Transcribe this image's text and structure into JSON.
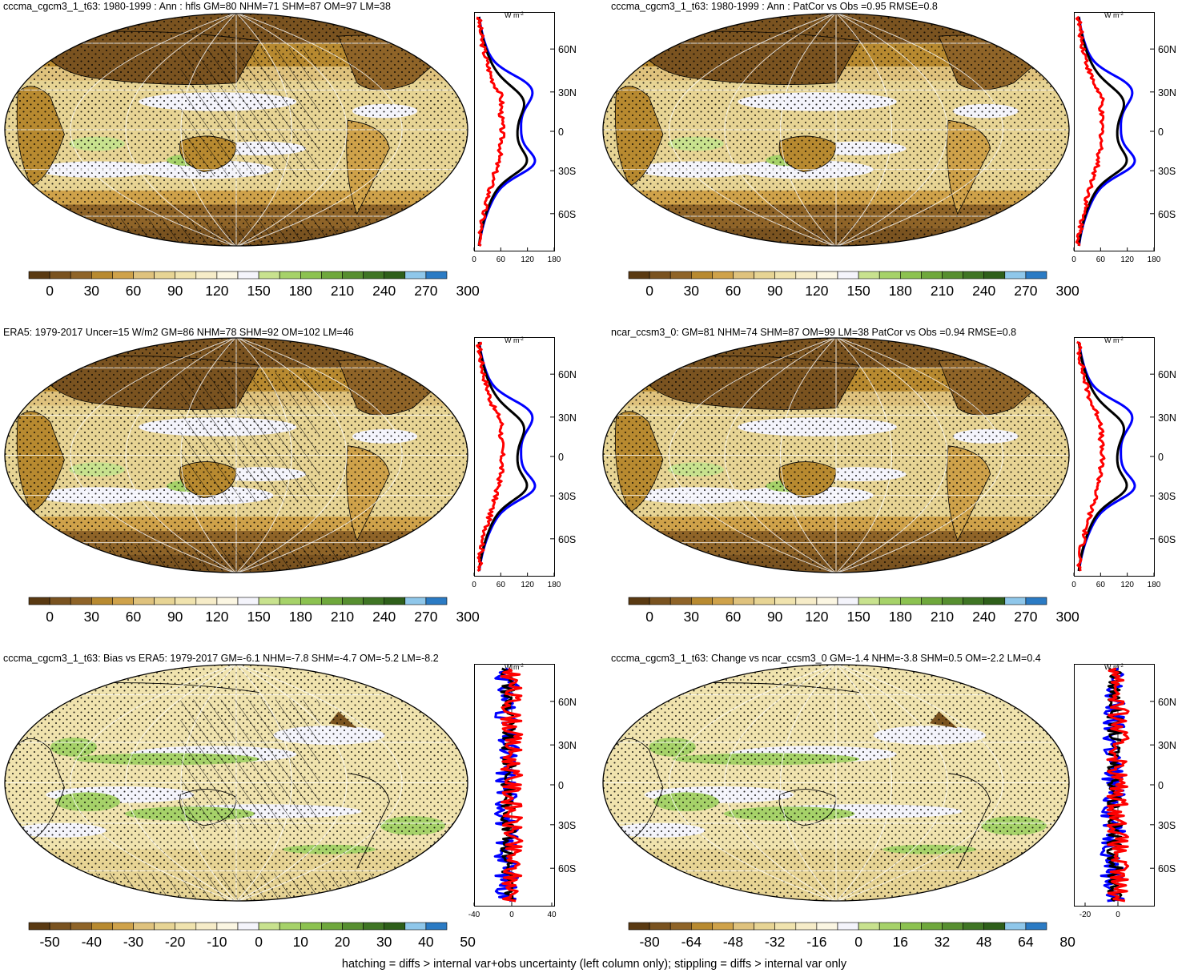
{
  "panels": [
    {
      "id": "p1",
      "title": "cccma_cgcm3_1_t63: 1980-1999 : Ann : hfls GM=80 NHM=71 SHM=87 OM=97 LM=38",
      "palette": "flux",
      "hatch": true,
      "colorbar_labels": [
        "0",
        "30",
        "60",
        "90",
        "120",
        "150",
        "180",
        "210",
        "240",
        "270",
        "300"
      ],
      "profile_ticks_x": [
        "0",
        "60",
        "120",
        "180"
      ],
      "profile_unit": "W m",
      "profile_unit_sup": "-2"
    },
    {
      "id": "p2",
      "title": "cccma_cgcm3_1_t63: 1980-1999 : Ann : PatCor vs Obs =0.95 RMSE=0.8",
      "palette": "flux",
      "hatch": false,
      "colorbar_labels": [
        "0",
        "30",
        "60",
        "90",
        "120",
        "150",
        "180",
        "210",
        "240",
        "270",
        "300"
      ],
      "profile_ticks_x": [
        "0",
        "60",
        "120",
        "180"
      ],
      "profile_unit": "W m",
      "profile_unit_sup": "-2"
    },
    {
      "id": "p3",
      "title": "ERA5: 1979-2017 Uncer=15 W/m2 GM=86 NHM=78 SHM=92 OM=102 LM=46",
      "palette": "flux",
      "hatch": true,
      "colorbar_labels": [
        "0",
        "30",
        "60",
        "90",
        "120",
        "150",
        "180",
        "210",
        "240",
        "270",
        "300"
      ],
      "profile_ticks_x": [
        "0",
        "60",
        "120",
        "180"
      ],
      "profile_unit": "W m",
      "profile_unit_sup": "-2"
    },
    {
      "id": "p4",
      "title": "ncar_ccsm3_0: GM=81 NHM=74 SHM=87 OM=99 LM=38 PatCor vs Obs =0.94 RMSE=0.8",
      "palette": "flux",
      "hatch": false,
      "colorbar_labels": [
        "0",
        "30",
        "60",
        "90",
        "120",
        "150",
        "180",
        "210",
        "240",
        "270",
        "300"
      ],
      "profile_ticks_x": [
        "0",
        "60",
        "120",
        "180"
      ],
      "profile_unit": "W m",
      "profile_unit_sup": "-2"
    },
    {
      "id": "p5",
      "title": "cccma_cgcm3_1_t63: Bias vs ERA5: 1979-2017 GM=-6.1 NHM=-7.8 SHM=-4.7 OM=-5.2 LM=-8.2",
      "palette": "diff",
      "hatch": true,
      "colorbar_labels": [
        "-50",
        "-40",
        "-30",
        "-20",
        "-10",
        "0",
        "10",
        "20",
        "30",
        "40",
        "50"
      ],
      "profile_ticks_x": [
        "-40",
        "0",
        "40"
      ],
      "profile_unit": "W m",
      "profile_unit_sup": "-2"
    },
    {
      "id": "p6",
      "title": "cccma_cgcm3_1_t63: Change vs ncar_ccsm3_0 GM=-1.4 NHM=-3.8 SHM=0.5 OM=-2.2 LM=0.4",
      "palette": "diff",
      "hatch": false,
      "colorbar_labels": [
        "-80",
        "-64",
        "-48",
        "-32",
        "-16",
        "0",
        "16",
        "32",
        "48",
        "64",
        "80"
      ],
      "profile_ticks_x": [
        "-20",
        "0"
      ],
      "profile_unit": "W m",
      "profile_unit_sup": "-2"
    }
  ],
  "profile_lat_ticks": [
    "60N",
    "30N",
    "0",
    "30S",
    "60S"
  ],
  "colors": {
    "flux": [
      "#5a3a12",
      "#7a5320",
      "#8f6428",
      "#b88a30",
      "#cfa24a",
      "#dfc27d",
      "#e7d494",
      "#f0e3ae",
      "#f6ecc8",
      "#fbf6e2",
      "#f4f4fb",
      "#c8e28e",
      "#a6d269",
      "#8cc250",
      "#6fa83c",
      "#578f30",
      "#3f7524",
      "#2e5f1a",
      "#8fc7ea",
      "#2b7bc4"
    ],
    "diff": [
      "#5a3a12",
      "#7a5320",
      "#8f6428",
      "#b88a30",
      "#cfa24a",
      "#dfc27d",
      "#e7d494",
      "#f0e3ae",
      "#f6ecc8",
      "#fbf6e2",
      "#f4f4fb",
      "#c8e28e",
      "#a6d269",
      "#8cc250",
      "#6fa83c",
      "#578f30",
      "#3f7524",
      "#2e5f1a",
      "#8fc7ea",
      "#2b7bc4"
    ],
    "profile_model": "#0000ff",
    "profile_obs": "#000000",
    "profile_other": "#ff0000"
  },
  "footnote": "hatching = diffs > internal var+obs uncertainty (left column only); stippling = diffs > internal var only"
}
